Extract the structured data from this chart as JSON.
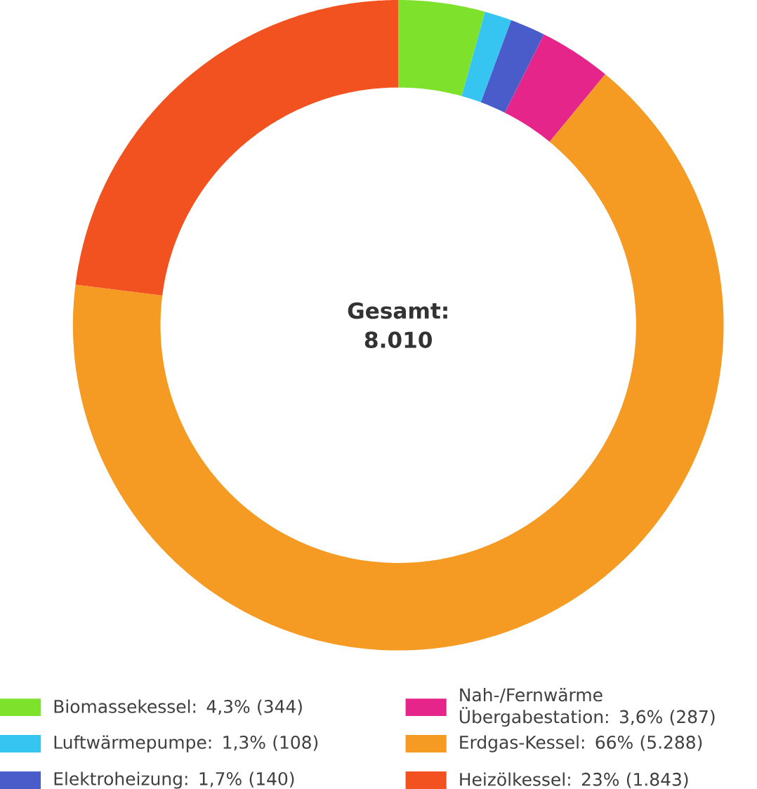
{
  "chart_data": {
    "type": "donut",
    "categories": [
      "Biomassekessel: 4,3% (344)",
      "Luftwärmepumpe: 1,3% (108)",
      "Elektroheizung: 1,7% (140)",
      "Nah-/Fernwärme Übergabestation: 3,6% (287)",
      "Erdgas-Kessel: 66% (5.288)",
      "Heizölkessel: 23% (1.843)"
    ],
    "values": [
      344,
      108,
      140,
      287,
      5288,
      1843
    ],
    "colors": [
      "#7ee12b",
      "#36c5f0",
      "#4a5cc9",
      "#e6258a",
      "#f59a23",
      "#f2521f"
    ],
    "annotations": [
      "Gesamt:",
      "8.010"
    ],
    "legend": "bottom"
  }
}
